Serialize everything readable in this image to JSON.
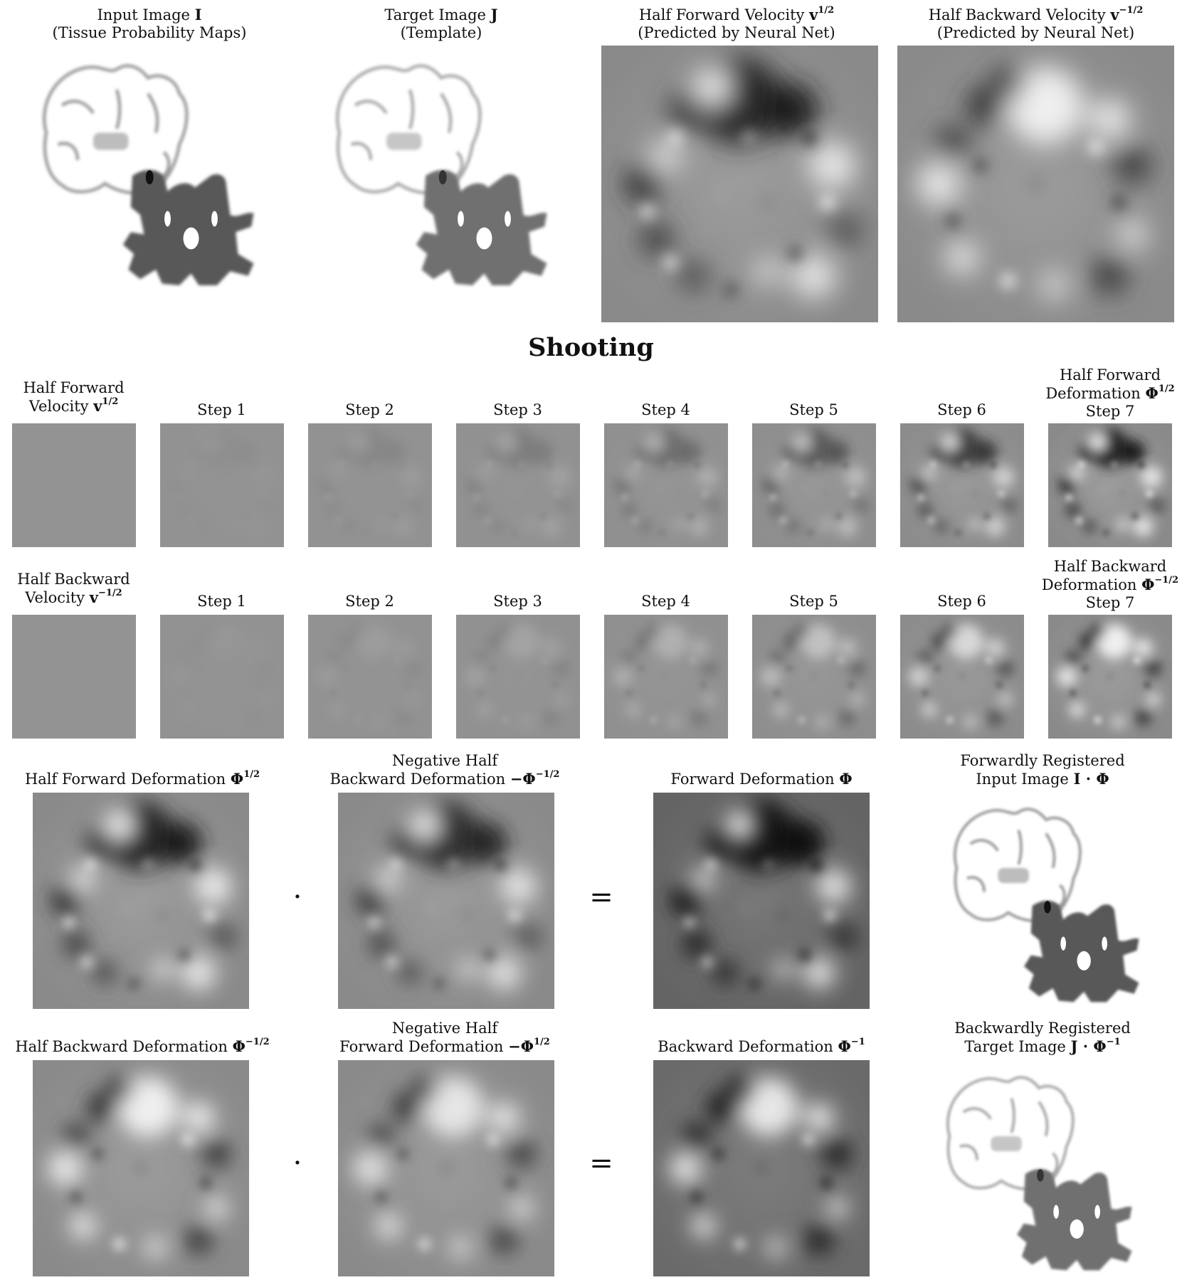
{
  "figure": {
    "top_row": {
      "input_image": {
        "line1": "Input Image",
        "symbol": "I",
        "line2": "(Tissue Probability Maps)"
      },
      "target_image": {
        "line1": "Target Image",
        "symbol": "J",
        "line2": "(Template)"
      },
      "half_forward_velocity": {
        "line1": "Half Forward Velocity",
        "symbol": "v",
        "exponent": "1/2",
        "line2": "(Predicted by Neural Net)"
      },
      "half_backward_velocity": {
        "line1": "Half Backward Velocity",
        "symbol": "v",
        "exponent": "−1/2",
        "line2": "(Predicted by Neural Net)"
      }
    },
    "section_title": "Shooting",
    "forward_row": {
      "first_label_line1": "Half Forward",
      "first_label_line2": "Velocity",
      "symbol": "v",
      "exponent": "1/2",
      "steps": [
        "Step 1",
        "Step 2",
        "Step 3",
        "Step 4",
        "Step 5",
        "Step 6"
      ],
      "last_line1": "Half Forward",
      "last_line2": "Deformation",
      "last_symbol": "Φ",
      "last_exponent": "1/2",
      "last_step": "Step 7"
    },
    "backward_row": {
      "first_label_line1": "Half Backward",
      "first_label_line2": "Velocity",
      "symbol": "v",
      "exponent": "−1/2",
      "steps": [
        "Step 1",
        "Step 2",
        "Step 3",
        "Step 4",
        "Step 5",
        "Step 6"
      ],
      "last_line1": "Half Backward",
      "last_line2": "Deformation",
      "last_symbol": "Φ",
      "last_exponent": "−1/2",
      "last_step": "Step 7"
    },
    "composition_forward": {
      "a_label": "Half Forward Deformation",
      "a_symbol": "Φ",
      "a_exponent": "1/2",
      "b_line1": "Negative Half",
      "b_line2": "Backward Deformation",
      "b_symbol": "−Φ",
      "b_exponent": "−1/2",
      "c_label": "Forward Deformation",
      "c_symbol": "Φ",
      "d_line1": "Forwardly Registered",
      "d_line2": "Input Image",
      "d_symbol": "I · Φ",
      "dot": "·",
      "equals": "="
    },
    "composition_backward": {
      "a_label": "Half Backward Deformation",
      "a_symbol": "Φ",
      "a_exponent": "−1/2",
      "b_line1": "Negative Half",
      "b_line2": "Forward Deformation",
      "b_symbol": "−Φ",
      "b_exponent": "1/2",
      "c_label": "Backward Deformation",
      "c_symbol": "Φ",
      "c_exponent": "−1",
      "d_line1": "Backwardly Registered",
      "d_line2": "Target Image",
      "d_symbol": "J · Φ",
      "d_exponent": "−1",
      "dot": "·",
      "equals": "="
    }
  }
}
